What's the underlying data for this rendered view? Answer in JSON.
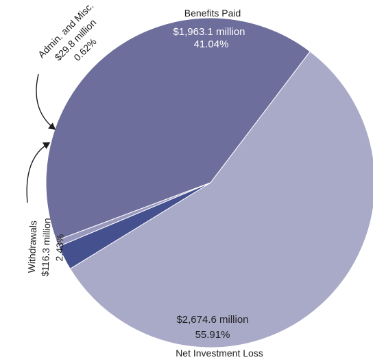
{
  "chart_data": {
    "type": "pie",
    "slices": [
      {
        "name": "Benefits Paid",
        "amount": "$1,963.1 million",
        "pct": "41.04%",
        "value": 41.04,
        "color": "#6e6e9c"
      },
      {
        "name": "Net Investment Loss",
        "amount": "$2,674.6 million",
        "pct": "55.91%",
        "value": 55.91,
        "color": "#a9a9c8"
      },
      {
        "name": "Withdrawals",
        "amount": "$116.3 million",
        "pct": "2.43%",
        "value": 2.43,
        "color": "#45508e"
      },
      {
        "name": "Admin. and Misc.",
        "amount": "$29.8 million",
        "pct": "0.62%",
        "value": 0.62,
        "color": "#9898be"
      }
    ]
  }
}
